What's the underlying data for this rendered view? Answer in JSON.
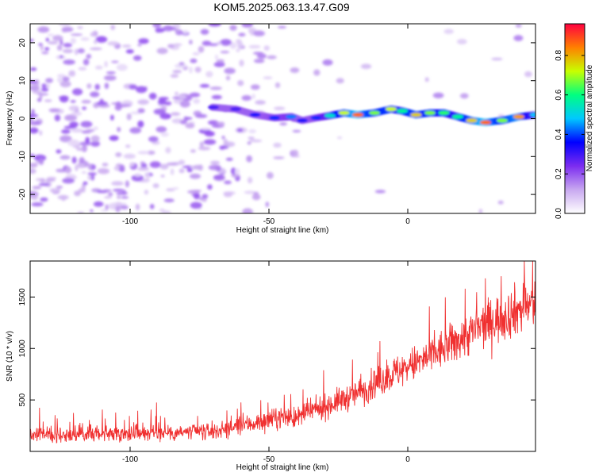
{
  "title": "KOM5.2025.063.13.47.G09",
  "chart_data": [
    {
      "type": "heatmap",
      "xlabel": "Height of straight line (km)",
      "ylabel": "Frequency (Hz)",
      "xlim": [
        -136,
        46
      ],
      "ylim": [
        -25,
        25
      ],
      "xticks": [
        -100,
        -50,
        0
      ],
      "yticks": [
        -20,
        -10,
        0,
        10,
        20
      ],
      "colorbar": {
        "label": "Normalized spectral amplitude",
        "range": [
          0,
          0.96
        ],
        "ticks": [
          0.0,
          0.2,
          0.4,
          0.6,
          0.8
        ],
        "colormap": [
          "#ffffff",
          "#c8a8f0",
          "#7c2cf0",
          "#0000ff",
          "#00c8ff",
          "#00ff80",
          "#c8ff00",
          "#ff8000",
          "#ff0040"
        ]
      },
      "ridge": {
        "x": [
          -70,
          -62,
          -55,
          -48,
          -42,
          -38,
          -33,
          -28,
          -23,
          -18,
          -12,
          -6,
          -2,
          3,
          8,
          13,
          18,
          23,
          28,
          34,
          40,
          46
        ],
        "y": [
          3.0,
          2.5,
          1.0,
          0.2,
          0.5,
          -0.5,
          0.2,
          0.8,
          1.5,
          1.0,
          1.5,
          2.5,
          2.0,
          1.0,
          1.5,
          1.5,
          0.5,
          -0.5,
          -1.0,
          -0.5,
          0.5,
          1.0
        ],
        "amplitude": [
          0.3,
          0.3,
          0.35,
          0.4,
          0.45,
          0.35,
          0.4,
          0.55,
          0.75,
          0.9,
          0.7,
          0.75,
          0.6,
          0.8,
          0.7,
          0.65,
          0.6,
          0.8,
          0.9,
          0.7,
          0.85,
          0.5
        ]
      }
    },
    {
      "type": "line",
      "xlabel": "Height of straight line (km)",
      "ylabel": "SNR (10 * v/v)",
      "xlim": [
        -136,
        46
      ],
      "ylim": [
        0,
        1850
      ],
      "xticks": [
        -100,
        -50,
        0
      ],
      "yticks": [
        500,
        1000,
        1500
      ],
      "color": "#f03030",
      "series": [
        {
          "x": [
            -136,
            -130,
            -120,
            -110,
            -100,
            -90,
            -80,
            -70,
            -60,
            -50,
            -45,
            -40,
            -35,
            -30,
            -25,
            -20,
            -15,
            -10,
            -5,
            0,
            5,
            10,
            15,
            20,
            25,
            30,
            35,
            40,
            46
          ],
          "y": [
            160,
            165,
            170,
            175,
            180,
            185,
            185,
            195,
            250,
            300,
            340,
            320,
            390,
            430,
            490,
            540,
            610,
            680,
            760,
            820,
            880,
            950,
            1030,
            1110,
            1190,
            1260,
            1320,
            1380,
            1440
          ]
        }
      ]
    }
  ]
}
